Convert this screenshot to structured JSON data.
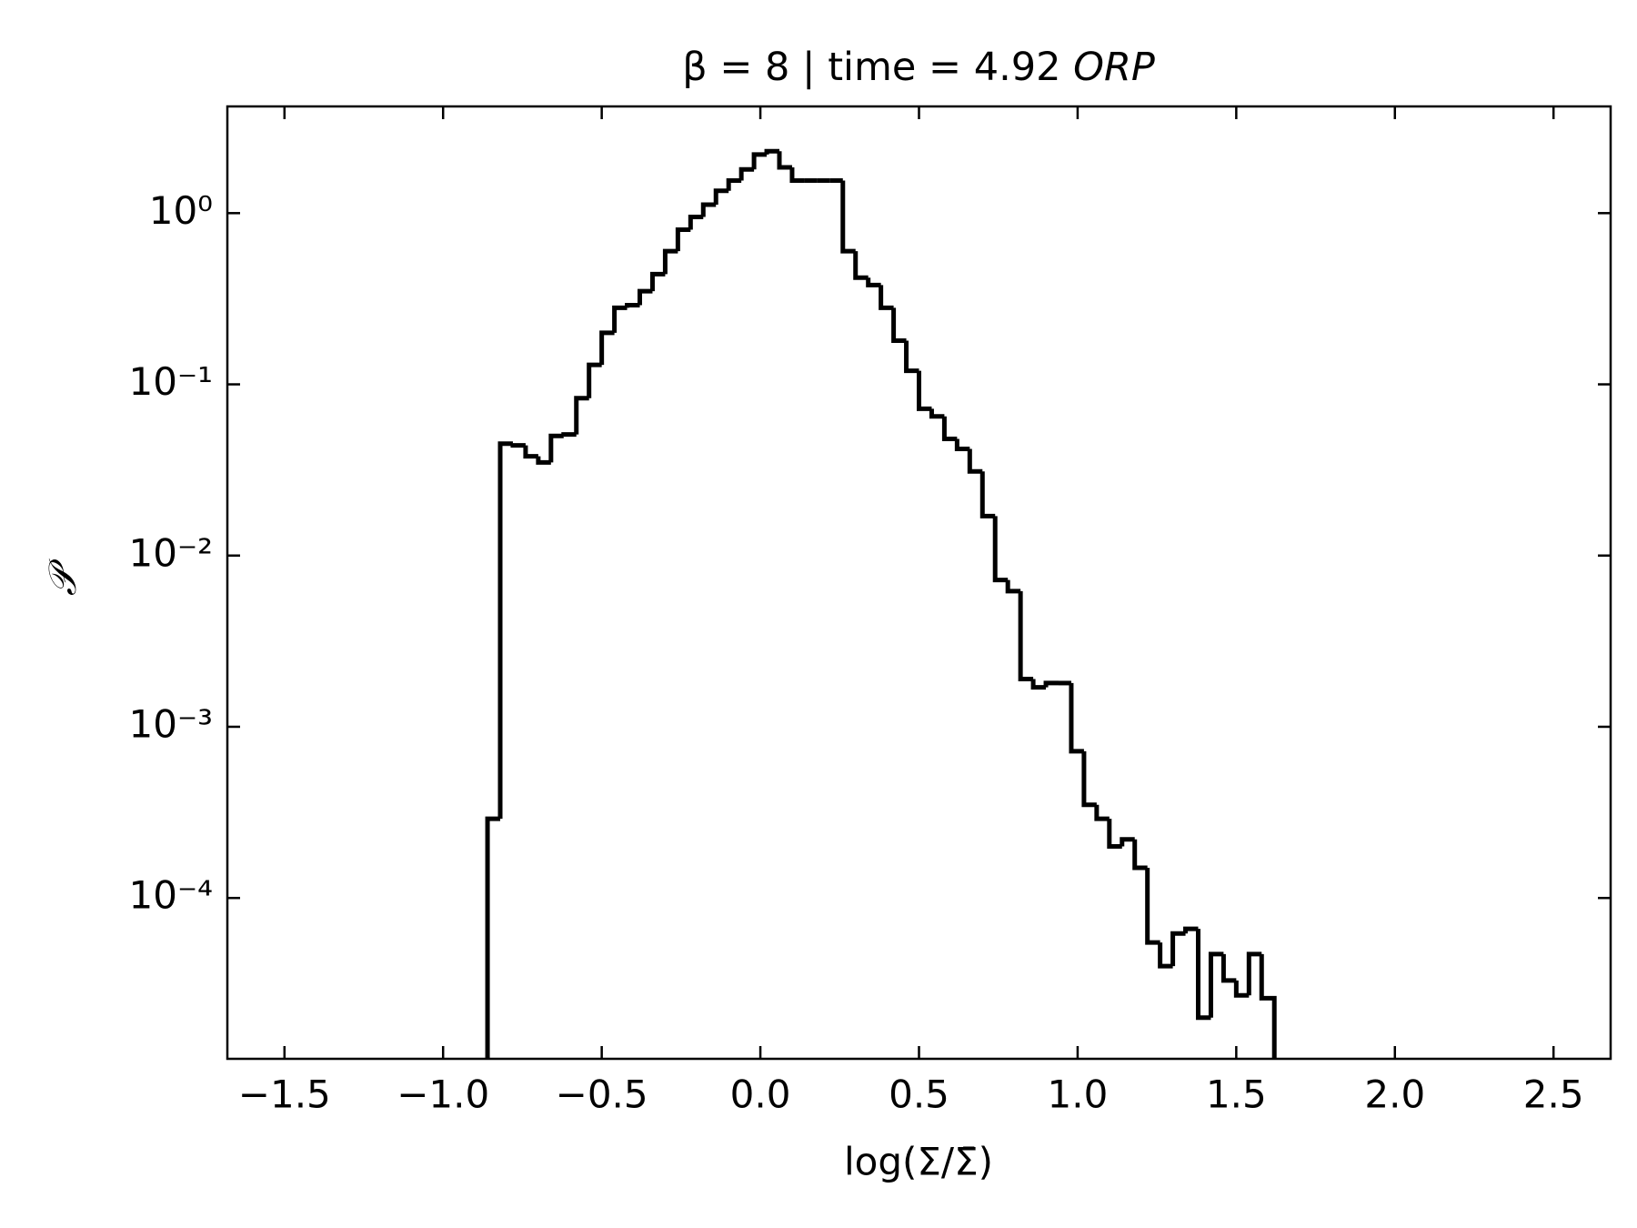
{
  "chart_data": {
    "type": "histogram_step",
    "title": "β = 8 | time = 4.92",
    "title_unit": "ORP",
    "xlabel": "log(Σ/Σ̄)",
    "ylabel": "𝒫",
    "bins": [
      -0.86,
      -0.82,
      -0.78,
      -0.74,
      -0.7,
      -0.66,
      -0.62,
      -0.58,
      -0.54,
      -0.5,
      -0.46,
      -0.42,
      -0.38,
      -0.34,
      -0.3,
      -0.26,
      -0.22,
      -0.18,
      -0.14,
      -0.1,
      -0.06,
      -0.02,
      0.02,
      0.06,
      0.1,
      0.14,
      0.18,
      0.22,
      0.26,
      0.3,
      0.34,
      0.38,
      0.42,
      0.46,
      0.5,
      0.54,
      0.58,
      0.62,
      0.66,
      0.7,
      0.74,
      0.78,
      0.82,
      0.86,
      0.9,
      0.94,
      0.98,
      1.02,
      1.06,
      1.1,
      1.14,
      1.18,
      1.22,
      1.26,
      1.3,
      1.34,
      1.38,
      1.42,
      1.46,
      1.5,
      1.54,
      1.58,
      1.62
    ],
    "values": [
      0.00029,
      0.045,
      0.044,
      0.038,
      0.035,
      0.05,
      0.051,
      0.083,
      0.13,
      0.2,
      0.28,
      0.29,
      0.35,
      0.44,
      0.6,
      0.8,
      0.95,
      1.12,
      1.35,
      1.55,
      1.8,
      2.2,
      2.3,
      1.85,
      1.55,
      1.55,
      1.55,
      1.55,
      0.6,
      0.42,
      0.38,
      0.28,
      0.18,
      0.12,
      0.072,
      0.065,
      0.048,
      0.042,
      0.031,
      0.017,
      0.0072,
      0.0062,
      0.0019,
      0.0017,
      0.0018,
      0.0018,
      0.00072,
      0.00035,
      0.00029,
      0.0002,
      0.00022,
      0.00015,
      5.5e-05,
      4e-05,
      6.2e-05,
      6.6e-05,
      2e-05,
      4.7e-05,
      3.3e-05,
      2.7e-05,
      4.7e-05,
      2.6e-05
    ],
    "color": "#000000",
    "xlim": [
      -1.68,
      2.68
    ],
    "xticks": [
      {
        "value": -1.5,
        "label": "−1.5"
      },
      {
        "value": -1.0,
        "label": "−1.0"
      },
      {
        "value": -0.5,
        "label": "−0.5"
      },
      {
        "value": 0.0,
        "label": "0.0"
      },
      0.5,
      {
        "value": 1.0,
        "label": "1.0"
      },
      1.5,
      {
        "value": 2.0,
        "label": "2.0"
      },
      2.5
    ],
    "ylim": [
      1.15e-05,
      4.2
    ],
    "yscale": "log",
    "yticks": [
      {
        "value": 0.0001,
        "label": "10⁻⁴"
      },
      {
        "value": 0.001,
        "label": "10⁻³"
      },
      {
        "value": 0.01,
        "label": "10⁻²"
      },
      {
        "value": 0.1,
        "label": "10⁻¹"
      },
      {
        "value": 1,
        "label": "10⁰"
      }
    ]
  }
}
